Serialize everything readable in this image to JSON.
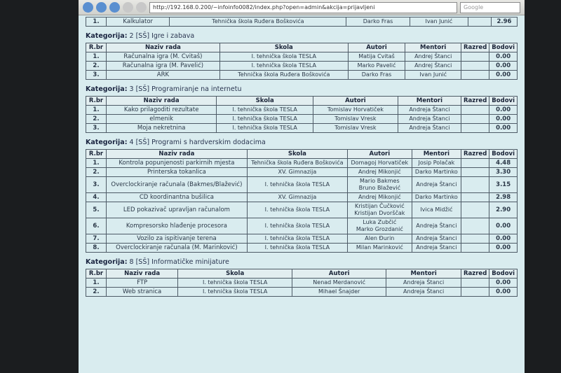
{
  "browser": {
    "address": "http://192.168.0.200/~infoinfo0082/index.php?open=admin&akcija=prijavljeni",
    "search": "Google"
  },
  "headers": [
    "R.br",
    "Naziv rada",
    "Skola",
    "Autori",
    "Mentori",
    "Razred",
    "Bodovi"
  ],
  "category_label": "Kategorija:",
  "top_row": {
    "rbr": "1.",
    "naziv": "Kalkulator",
    "skola": "Tehnička škola Ruđera Boškovića",
    "autori": [
      "Darko Fras"
    ],
    "mentori": "Ivan Junić",
    "bodovi": "2.96"
  },
  "categories": [
    {
      "name": "2 [SŠ] Igre i zabava",
      "rows": [
        {
          "rbr": "1.",
          "naziv": "Računalna igra (M. Cvitaš)",
          "skola": "I. tehnička škola TESLA",
          "autori": [
            "Matija Cvitaš"
          ],
          "mentori": "Andrej Štanci",
          "bodovi": "0.00"
        },
        {
          "rbr": "2.",
          "naziv": "Računalna igra (M. Pavelić)",
          "skola": "I. tehnička škola TESLA",
          "autori": [
            "Marko Pavelić"
          ],
          "mentori": "Andrej Štanci",
          "bodovi": "0.00"
        },
        {
          "rbr": "3.",
          "naziv": "ARK",
          "skola": "Tehnička škola Ruđera Boškovića",
          "autori": [
            "Darko Fras"
          ],
          "mentori": "Ivan Junić",
          "bodovi": "0.00"
        }
      ]
    },
    {
      "name": "3 [SŠ] Programiranje na internetu",
      "rows": [
        {
          "rbr": "1.",
          "naziv": "Kako prilagoditi rezultate",
          "skola": "I. tehnička škola TESLA",
          "autori": [
            "Tomislav Horvatiček"
          ],
          "mentori": "Andreja Štanci",
          "bodovi": "0.00"
        },
        {
          "rbr": "2.",
          "naziv": "elmenik",
          "skola": "I. tehnička škola TESLA",
          "autori": [
            "Tomislav Vresk"
          ],
          "mentori": "Andreja Štanci",
          "bodovi": "0.00"
        },
        {
          "rbr": "3.",
          "naziv": "Moja nekretnina",
          "skola": "I. tehnička škola TESLA",
          "autori": [
            "Tomislav Vresk"
          ],
          "mentori": "Andreja Štanci",
          "bodovi": "0.00"
        }
      ]
    },
    {
      "name": "4 [SŠ] Programi s hardverskim dodacima",
      "rows": [
        {
          "rbr": "1.",
          "naziv": "Kontrola popunjenosti parkirnih mjesta",
          "skola": "Tehnička škola Ruđera Boškovića",
          "autori": [
            "Domagoj Horvatiček"
          ],
          "mentori": "Josip Polačak",
          "bodovi": "4.48"
        },
        {
          "rbr": "2.",
          "naziv": "Printerska tokanlica",
          "skola": "XV. Gimnazija",
          "autori": [
            "Andrej Mikonjić"
          ],
          "mentori": "Darko Martinko",
          "bodovi": "3.30"
        },
        {
          "rbr": "3.",
          "naziv": "Overclockiranje računala (Bakmes/Blažević)",
          "skola": "I. tehnička škola TESLA",
          "autori": [
            "Mario Bakmes",
            "Bruno Blažević"
          ],
          "mentori": "Andreja Štanci",
          "bodovi": "3.15"
        },
        {
          "rbr": "4.",
          "naziv": "CD koordinantna bušilica",
          "skola": "XV. Gimnazija",
          "autori": [
            "Andrej Mikonjić"
          ],
          "mentori": "Darko Martinko",
          "bodovi": "2.98"
        },
        {
          "rbr": "5.",
          "naziv": "LED pokazivač upravljan računalom",
          "skola": "I. tehnička škola TESLA",
          "autori": [
            "Kristijan Čučković",
            "Kristijan Dvorščak"
          ],
          "mentori": "Ivica Midžić",
          "bodovi": "2.90"
        },
        {
          "rbr": "6.",
          "naziv": "Kompresorsko hlađenje procesora",
          "skola": "I. tehnička škola TESLA",
          "autori": [
            "Luka Zubčić",
            "Marko Grozdanić"
          ],
          "mentori": "Andreja Štanci",
          "bodovi": "0.00"
        },
        {
          "rbr": "7.",
          "naziv": "Vozilo za ispitivanje terena",
          "skola": "I. tehnička škola TESLA",
          "autori": [
            "Alen Đurin"
          ],
          "mentori": "Andreja Štanci",
          "bodovi": "0.00"
        },
        {
          "rbr": "8.",
          "naziv": "Overclockiranje računala (M. Marinković)",
          "skola": "I. tehnička škola TESLA",
          "autori": [
            "Milan Marinković"
          ],
          "mentori": "Andreja Štanci",
          "bodovi": "0.00"
        }
      ]
    },
    {
      "name": "8 [SŠ] Informatičke minijature",
      "rows": [
        {
          "rbr": "1.",
          "naziv": "FTP",
          "skola": "I. tehnička škola TESLA",
          "autori": [
            "Nenad Merdanović"
          ],
          "mentori": "Andreja Štanci",
          "bodovi": "0.00"
        },
        {
          "rbr": "2.",
          "naziv": "Web stranica",
          "skola": "I. tehnička škola TESLA",
          "autori": [
            "Mihael Šnajder"
          ],
          "mentori": "Andreja Štanci",
          "bodovi": "0.00"
        }
      ]
    }
  ]
}
